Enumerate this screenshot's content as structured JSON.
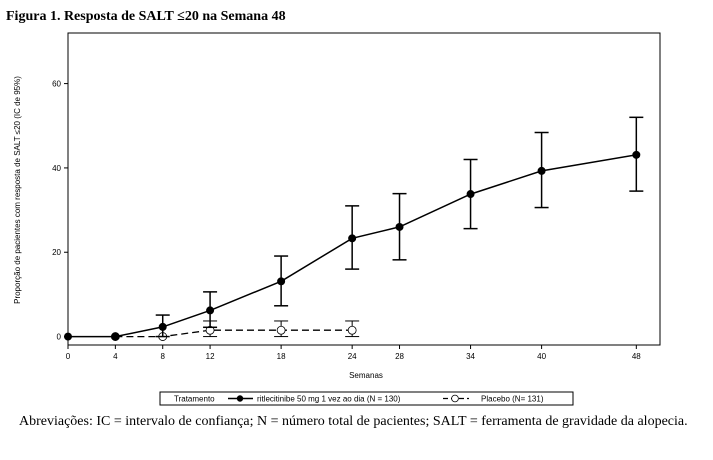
{
  "figure": {
    "title": "Figura 1. Resposta de SALT ≤20 na Semana 48",
    "caption": "Abreviações: IC = intervalo de confiança; N = número total de pacientes; SALT = ferramenta de gravidade da alopecia."
  },
  "chart_data": {
    "type": "line",
    "title": "Figura 1. Resposta de SALT ≤20 na Semana 48",
    "xlabel": "Semanas",
    "ylabel": "Proporção de pacientes com resposta de SALT ≤20 (IC de 95%)",
    "xlim": [
      0,
      50
    ],
    "ylim": [
      -2,
      72
    ],
    "x_ticks": [
      0,
      4,
      8,
      12,
      18,
      24,
      28,
      34,
      40,
      48
    ],
    "y_ticks": [
      0,
      20,
      40,
      60
    ],
    "grid": false,
    "legend": {
      "position": "bottom",
      "title": "Tratamento",
      "entries": [
        "ritlecitinibe 50 mg 1 vez ao dia (N = 130)",
        "Placebo (N= 131)"
      ]
    },
    "series": [
      {
        "name": "ritlecitinibe 50 mg 1 vez ao dia (N = 130)",
        "style": "solid",
        "marker": "filled-circle",
        "color": "#000000",
        "x": [
          0,
          4,
          8,
          12,
          18,
          24,
          28,
          34,
          40,
          48
        ],
        "y": [
          0,
          0,
          2.3,
          6.2,
          13.1,
          23.3,
          26.0,
          33.8,
          39.3,
          43.1
        ],
        "ci_low": [
          0,
          0,
          0,
          2.2,
          7.3,
          16.0,
          18.2,
          25.6,
          30.6,
          34.5
        ],
        "ci_high": [
          0,
          0,
          5.1,
          10.6,
          19.1,
          31.0,
          33.9,
          42.0,
          48.4,
          52.0
        ]
      },
      {
        "name": "Placebo (N= 131)",
        "style": "dashed",
        "marker": "open-circle",
        "color": "#000000",
        "x": [
          4,
          8,
          12,
          18,
          24
        ],
        "y": [
          0,
          0,
          1.5,
          1.5,
          1.5
        ],
        "ci_low": [
          0,
          0,
          0,
          0,
          0
        ],
        "ci_high": [
          0,
          0,
          3.7,
          3.7,
          3.7
        ]
      }
    ]
  }
}
